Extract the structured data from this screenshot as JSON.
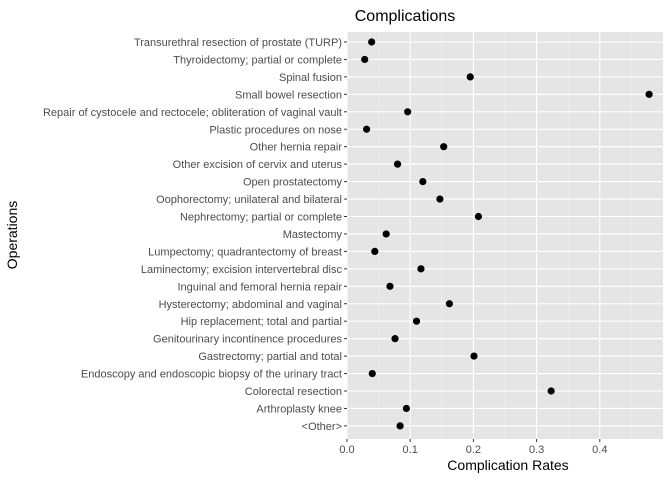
{
  "chart_data": {
    "type": "scatter",
    "title": "Complications",
    "xlabel": "Complication Rates",
    "ylabel": "Operations",
    "xlim": [
      0,
      0.48
    ],
    "x_ticks": [
      "0.0",
      "0.1",
      "0.2",
      "0.3",
      "0.4"
    ],
    "x_tick_values": [
      0,
      0.1,
      0.2,
      0.3,
      0.4
    ],
    "grid": true,
    "panel_background": "#e5e5e5",
    "point_color": "#000000",
    "categories": [
      "Transurethral resection of prostate (TURP)",
      "Thyroidectomy; partial or complete",
      "Spinal fusion",
      "Small bowel resection",
      "Repair of cystocele and rectocele; obliteration of vaginal vault",
      "Plastic procedures on nose",
      "Other hernia repair",
      "Other excision of cervix and uterus",
      "Open prostatectomy",
      "Oophorectomy; unilateral and bilateral",
      "Nephrectomy; partial or complete",
      "Mastectomy",
      "Lumpectomy; quadrantectomy of breast",
      "Laminectomy; excision intervertebral disc",
      "Inguinal and femoral hernia repair",
      "Hysterectomy; abdominal and vaginal",
      "Hip replacement; total and partial",
      "Genitourinary incontinence procedures",
      "Gastrectomy; partial and total",
      "Endoscopy and endoscopic biopsy of the urinary tract",
      "Colorectal resection",
      "Arthroplasty knee",
      "<Other>"
    ],
    "values": [
      0.039,
      0.028,
      0.195,
      0.478,
      0.096,
      0.031,
      0.153,
      0.08,
      0.12,
      0.147,
      0.208,
      0.062,
      0.044,
      0.117,
      0.068,
      0.162,
      0.11,
      0.076,
      0.201,
      0.04,
      0.323,
      0.094,
      0.084
    ]
  }
}
